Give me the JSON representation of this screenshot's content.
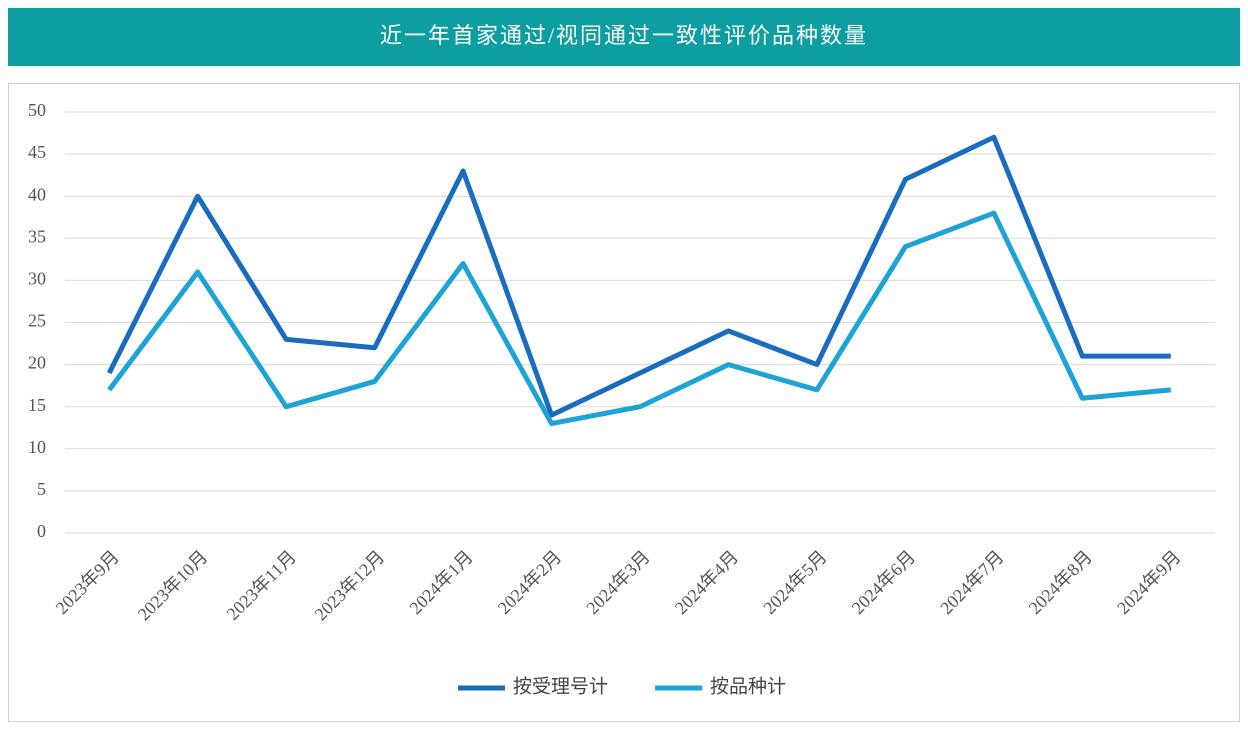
{
  "chart_data": {
    "type": "line",
    "title": "近一年首家通过/视同通过一致性评价品种数量",
    "categories": [
      "2023年9月",
      "2023年10月",
      "2023年11月",
      "2023年12月",
      "2024年1月",
      "2024年2月",
      "2024年3月",
      "2024年4月",
      "2024年5月",
      "2024年6月",
      "2024年7月",
      "2024年8月",
      "2024年9月"
    ],
    "series": [
      {
        "name": "按受理号计",
        "color": "#1a6cbf",
        "values": [
          19,
          40,
          23,
          22,
          43,
          14,
          19,
          24,
          20,
          42,
          47,
          21,
          21
        ]
      },
      {
        "name": "按品种计",
        "color": "#1ea3d6",
        "values": [
          17,
          31,
          15,
          18,
          32,
          13,
          15,
          20,
          17,
          34,
          38,
          16,
          17
        ]
      }
    ],
    "ylim": [
      0,
      50
    ],
    "yticks": [
      0,
      5,
      10,
      15,
      20,
      25,
      30,
      35,
      40,
      45,
      50
    ],
    "grid": true,
    "legend": "bottom"
  }
}
